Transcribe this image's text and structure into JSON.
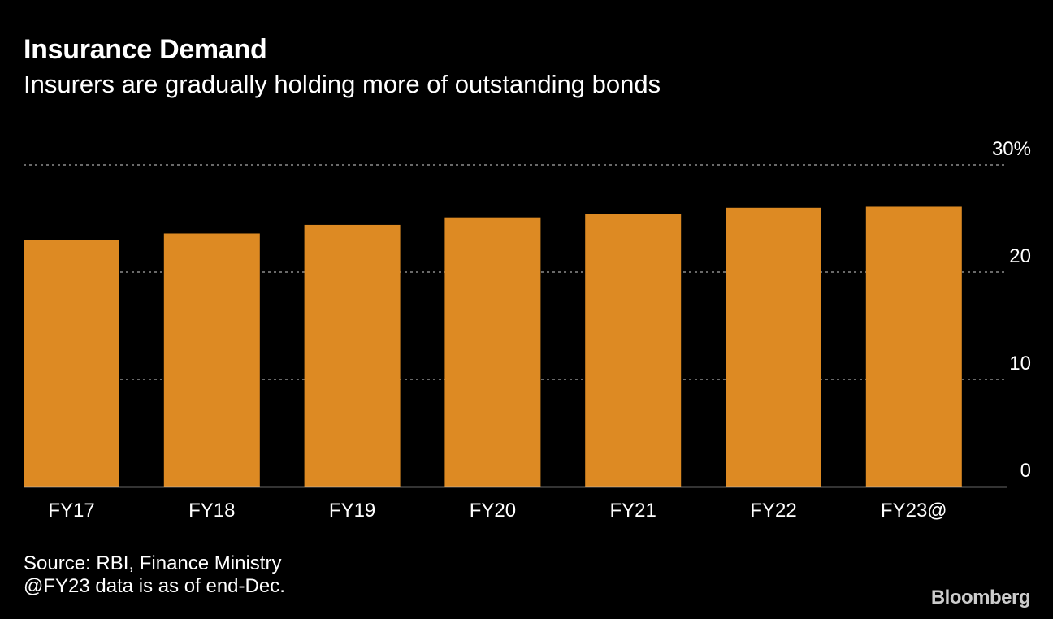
{
  "header": {
    "title": "Insurance Demand",
    "subtitle": "Insurers are gradually holding more of outstanding bonds"
  },
  "footer": {
    "source": "Source: RBI, Finance Ministry",
    "note": "@FY23 data is as of end-Dec.",
    "brand": "Bloomberg"
  },
  "colors": {
    "bar": "#DD8A23",
    "grid": "#8c8c8c",
    "axis": "#cccccc",
    "background": "#000000"
  },
  "chart_data": {
    "type": "bar",
    "title": "Insurance Demand",
    "subtitle": "Insurers are gradually holding more of outstanding bonds",
    "categories": [
      "FY17",
      "FY18",
      "FY19",
      "FY20",
      "FY21",
      "FY22",
      "FY23@"
    ],
    "values": [
      23.0,
      23.6,
      24.4,
      25.1,
      25.4,
      26.0,
      26.1
    ],
    "ylim": [
      0,
      30
    ],
    "yticks": [
      0,
      10,
      20,
      30
    ],
    "ytick_labels": [
      "0",
      "10",
      "20",
      "30%"
    ],
    "y_axis_position": "right",
    "grid": true,
    "legend": "none"
  }
}
